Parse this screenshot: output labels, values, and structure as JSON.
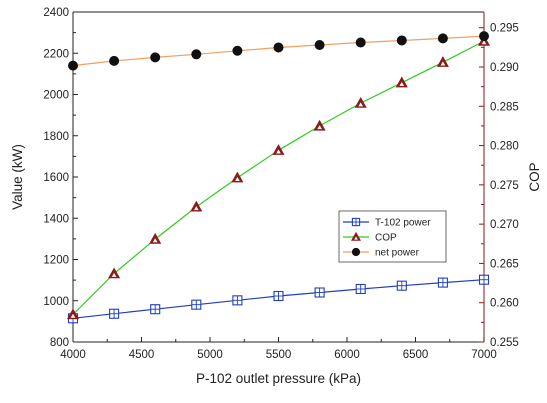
{
  "chart_data": {
    "type": "line",
    "xlabel": "P-102 outlet pressure (kPa)",
    "ylabel_left": "Value (kW)",
    "ylabel_right": "COP",
    "xlim": [
      4000,
      7000
    ],
    "ylim_left": [
      800,
      2400
    ],
    "ylim_right": [
      0.255,
      0.297
    ],
    "x_ticks": [
      "4000",
      "4500",
      "5000",
      "5500",
      "6000",
      "6500",
      "7000"
    ],
    "y_left_ticks": [
      "800",
      "1000",
      "1200",
      "1400",
      "1600",
      "1800",
      "2000",
      "2200",
      "2400"
    ],
    "y_right_ticks": [
      "0.255",
      "0.260",
      "0.265",
      "0.270",
      "0.275",
      "0.280",
      "0.285",
      "0.290",
      "0.295"
    ],
    "x": [
      4000,
      4300,
      4600,
      4900,
      5200,
      5500,
      5800,
      6100,
      6400,
      6700,
      7000
    ],
    "legend_position": "center-right",
    "series": [
      {
        "name": "T-102 power",
        "axis": "left",
        "marker": "open-square",
        "color": "#1f3fbf",
        "values": [
          915,
          937,
          959,
          981,
          1002,
          1023,
          1040,
          1057,
          1073,
          1088,
          1102
        ]
      },
      {
        "name": "COP",
        "axis": "right",
        "marker": "triangle",
        "color": "#2ecc1f",
        "marker_color": "#8b1a1a",
        "values": [
          0.2585,
          0.2637,
          0.2681,
          0.2722,
          0.2759,
          0.2794,
          0.2825,
          0.2854,
          0.288,
          0.2906,
          0.2933
        ]
      },
      {
        "name": "net power",
        "axis": "left",
        "marker": "filled-circle",
        "color": "#f0a060",
        "marker_color": "#111111",
        "values": [
          2140,
          2163,
          2180,
          2195,
          2212,
          2228,
          2240,
          2252,
          2262,
          2272,
          2283
        ]
      }
    ]
  }
}
